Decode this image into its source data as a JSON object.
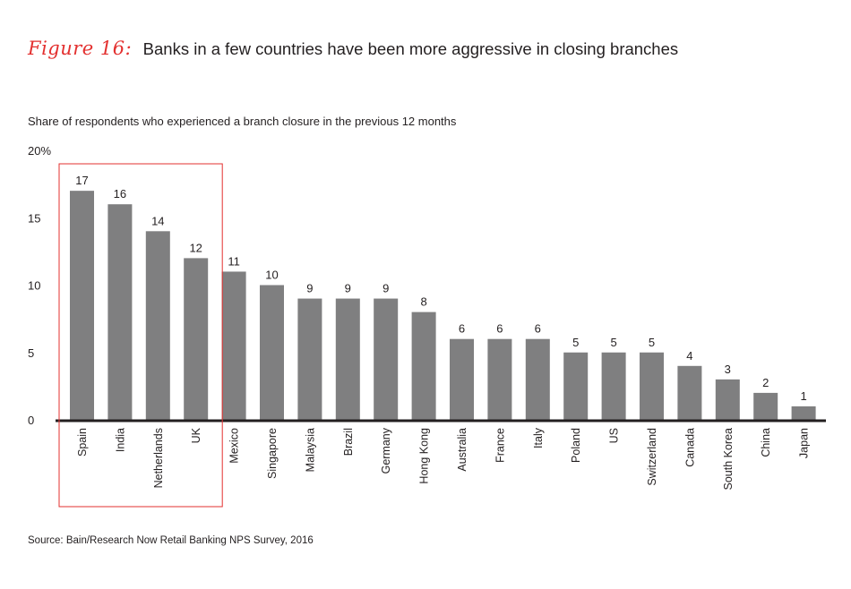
{
  "figure_label": "Figure 16:",
  "figure_title": "Banks in a few countries have been more aggressive in closing branches",
  "subtitle": "Share of respondents who experienced a branch closure in the previous 12 months",
  "source": "Source: Bain/Research Now Retail Banking NPS Survey, 2016",
  "colors": {
    "bar": "#7f7f80",
    "highlight_box": "#e3302f",
    "axis": "#231f20",
    "accent": "#e3302f"
  },
  "chart_data": {
    "type": "bar",
    "title": "Banks in a few countries have been more aggressive in closing branches",
    "ylabel": "",
    "xlabel": "",
    "ylim": [
      0,
      20
    ],
    "yticks": [
      "0",
      "5",
      "10",
      "15",
      "20%"
    ],
    "categories": [
      "Spain",
      "India",
      "Netherlands",
      "UK",
      "Mexico",
      "Singapore",
      "Malaysia",
      "Brazil",
      "Germany",
      "Hong Kong",
      "Australia",
      "France",
      "Italy",
      "Poland",
      "US",
      "Switzerland",
      "Canada",
      "South Korea",
      "China",
      "Japan"
    ],
    "values": [
      17,
      16,
      14,
      12,
      11,
      10,
      9,
      9,
      9,
      8,
      6,
      6,
      6,
      5,
      5,
      5,
      4,
      3,
      2,
      1
    ],
    "highlighted_categories": [
      "Spain",
      "India",
      "Netherlands",
      "UK"
    ],
    "grid": false
  }
}
